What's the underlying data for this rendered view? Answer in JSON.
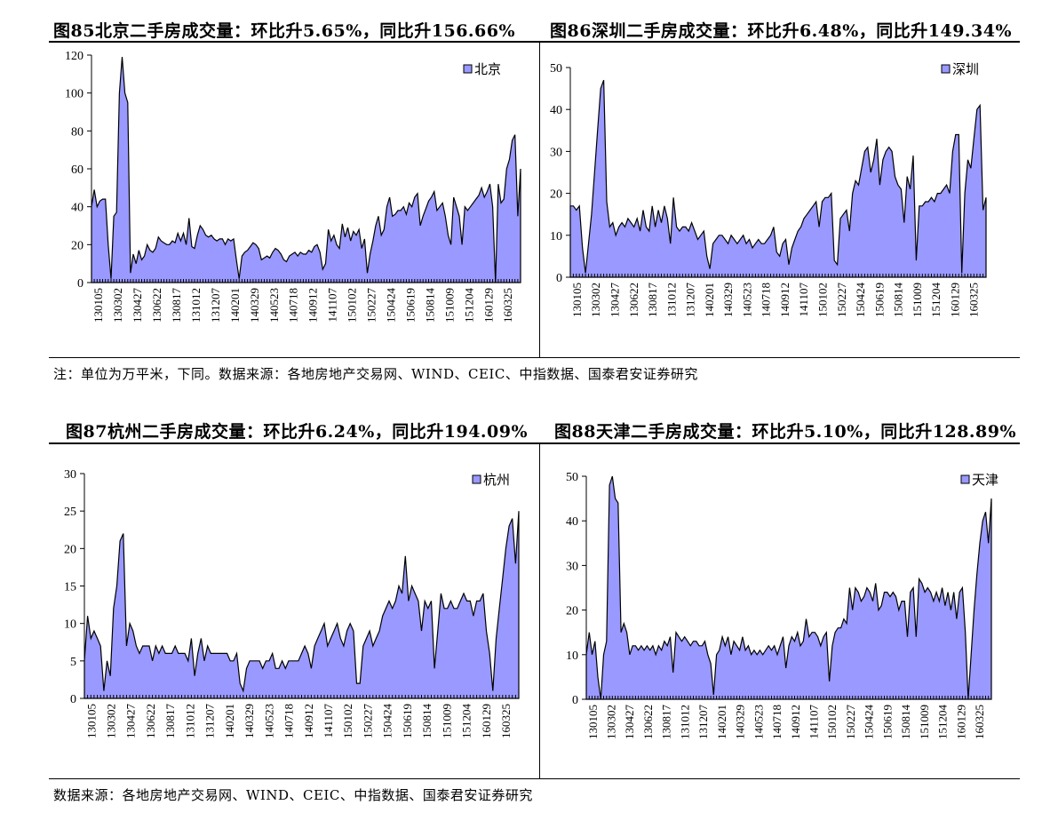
{
  "figures": [
    {
      "id": "fig85",
      "title": "图85北京二手房成交量：环比升5.65%，同比升156.66%"
    },
    {
      "id": "fig86",
      "title": "图86深圳二手房成交量：环比升6.48%，同比升149.34%"
    },
    {
      "id": "fig87",
      "title": "图87杭州二手房成交量：环比升6.24%，同比升194.09%"
    },
    {
      "id": "fig88",
      "title": "图88天津二手房成交量：环比升5.10%，同比升128.89%"
    }
  ],
  "notes": {
    "top": "注：单位为万平米，下同。数据来源：各地房地产交易网、WIND、CEIC、中指数据、国泰君安证券研究",
    "bottom": "数据来源：各地房地产交易网、WIND、CEIC、中指数据、国泰君安证券研究"
  },
  "colors": {
    "fill": "#9999ff",
    "stroke": "#000000"
  },
  "chart_data": [
    {
      "type": "area",
      "legend": "北京",
      "ylim": [
        0,
        120
      ],
      "yticks": [
        0,
        20,
        40,
        60,
        80,
        100,
        120
      ],
      "xticks": [
        "130105",
        "130302",
        "130427",
        "130622",
        "130817",
        "131012",
        "131207",
        "140201",
        "140329",
        "140523",
        "140718",
        "140912",
        "141107",
        "150102",
        "150227",
        "150424",
        "150619",
        "150814",
        "151009",
        "151204",
        "160129",
        "160325"
      ],
      "values": [
        40,
        49,
        40,
        43,
        44,
        44,
        20,
        2,
        35,
        37,
        100,
        119,
        100,
        95,
        5,
        15,
        10,
        17,
        12,
        14,
        20,
        17,
        16,
        18,
        24,
        22,
        21,
        20,
        20,
        22,
        21,
        26,
        22,
        26,
        20,
        34,
        19,
        18,
        25,
        30,
        28,
        25,
        24,
        25,
        23,
        22,
        23,
        23,
        20,
        23,
        22,
        23,
        12,
        2,
        14,
        16,
        17,
        19,
        21,
        20,
        18,
        12,
        13,
        14,
        13,
        16,
        18,
        17,
        15,
        12,
        11,
        14,
        15,
        16,
        14,
        16,
        15,
        15,
        17,
        16,
        19,
        20,
        16,
        7,
        10,
        28,
        22,
        25,
        20,
        18,
        31,
        24,
        29,
        22,
        27,
        25,
        28,
        18,
        23,
        5,
        15,
        22,
        30,
        35,
        25,
        28,
        40,
        45,
        35,
        36,
        38,
        38,
        40,
        36,
        42,
        40,
        45,
        47,
        30,
        35,
        39,
        43,
        45,
        48,
        38,
        40,
        42,
        35,
        25,
        20,
        45,
        40,
        35,
        20,
        40,
        38,
        40,
        42,
        44,
        46,
        50,
        45,
        48,
        52,
        40,
        0,
        52,
        42,
        44,
        60,
        65,
        75,
        78,
        35,
        60
      ]
    },
    {
      "type": "area",
      "legend": "深圳",
      "ylim": [
        0,
        50
      ],
      "yticks": [
        0,
        10,
        20,
        30,
        40,
        50
      ],
      "xticks": [
        "130105",
        "130302",
        "130427",
        "130622",
        "130817",
        "131012",
        "131207",
        "140201",
        "140329",
        "140523",
        "140718",
        "140912",
        "141107",
        "150102",
        "150227",
        "150424",
        "150619",
        "150814",
        "151009",
        "151204",
        "160129",
        "160325"
      ],
      "values": [
        17,
        17,
        16,
        17,
        7,
        1,
        8,
        15,
        25,
        35,
        45,
        47,
        18,
        12,
        13,
        10,
        12,
        13,
        12,
        14,
        13,
        12,
        14,
        11,
        16,
        12,
        11,
        17,
        12,
        16,
        13,
        17,
        14,
        8,
        19,
        12,
        11,
        12,
        12,
        11,
        13,
        11,
        9,
        10,
        11,
        5,
        2,
        8,
        9,
        10,
        10,
        9,
        8,
        10,
        9,
        8,
        9,
        10,
        8,
        9,
        7,
        8,
        9,
        8,
        8,
        9,
        10,
        12,
        6,
        5,
        8,
        9,
        3,
        7,
        9,
        11,
        12,
        14,
        15,
        16,
        17,
        18,
        12,
        18,
        19,
        19,
        20,
        4,
        3,
        14,
        15,
        16,
        11,
        20,
        23,
        22,
        26,
        30,
        31,
        25,
        28,
        33,
        22,
        28,
        30,
        31,
        30,
        24,
        22,
        21,
        13,
        24,
        21,
        29,
        4,
        17,
        17,
        18,
        18,
        19,
        18,
        20,
        20,
        21,
        22,
        20,
        30,
        34,
        34,
        1,
        20,
        28,
        26,
        33,
        40,
        41,
        16,
        19
      ]
    },
    {
      "type": "area",
      "legend": "杭州",
      "ylim": [
        0,
        30
      ],
      "yticks": [
        0,
        5,
        10,
        15,
        20,
        25,
        30
      ],
      "xticks": [
        "130105",
        "130302",
        "130427",
        "130622",
        "130817",
        "131012",
        "131207",
        "140201",
        "140329",
        "140523",
        "140718",
        "140912",
        "141107",
        "150102",
        "150227",
        "150424",
        "150619",
        "150814",
        "151009",
        "151204",
        "160129",
        "160325"
      ],
      "values": [
        5,
        11,
        8,
        9,
        8,
        7,
        1,
        5,
        3,
        12,
        15,
        21,
        22,
        7,
        10,
        9,
        7,
        6,
        7,
        7,
        7,
        5,
        7,
        6,
        7,
        6,
        6,
        6,
        7,
        6,
        6,
        6,
        5,
        8,
        3,
        6,
        8,
        5,
        7,
        6,
        6,
        6,
        6,
        6,
        6,
        5,
        5,
        6,
        2,
        1,
        4,
        5,
        5,
        5,
        5,
        4,
        5,
        5,
        6,
        4,
        4,
        5,
        4,
        5,
        5,
        5,
        5,
        6,
        7,
        6,
        4,
        7,
        8,
        9,
        10,
        7,
        8,
        9,
        10,
        8,
        7,
        9,
        10,
        9,
        2,
        2,
        7,
        8,
        9,
        7,
        8,
        9,
        11,
        12,
        13,
        12,
        13,
        15,
        14,
        19,
        13,
        15,
        14,
        13,
        9,
        13,
        12,
        13,
        4,
        9,
        14,
        12,
        12,
        13,
        12,
        12,
        13,
        14,
        13,
        13,
        11,
        13,
        13,
        14,
        9,
        6,
        1,
        8,
        12,
        16,
        20,
        23,
        24,
        18,
        25
      ]
    },
    {
      "type": "area",
      "legend": "天津",
      "ylim": [
        0,
        50
      ],
      "yticks": [
        0,
        10,
        20,
        30,
        40,
        50
      ],
      "xticks": [
        "130105",
        "130302",
        "130427",
        "130622",
        "130817",
        "131012",
        "131207",
        "140201",
        "140329",
        "140523",
        "140718",
        "140912",
        "141107",
        "150102",
        "150227",
        "150424",
        "150619",
        "150814",
        "151009",
        "151204",
        "160129",
        "160325"
      ],
      "values": [
        10,
        15,
        10,
        13,
        5,
        0,
        10,
        13,
        48,
        50,
        45,
        44,
        15,
        17,
        15,
        10,
        12,
        12,
        11,
        12,
        11,
        12,
        11,
        12,
        10,
        12,
        11,
        13,
        12,
        14,
        6,
        15,
        14,
        13,
        14,
        13,
        12,
        13,
        13,
        12,
        12,
        13,
        10,
        8,
        1,
        10,
        11,
        14,
        12,
        14,
        10,
        13,
        12,
        11,
        14,
        11,
        12,
        10,
        11,
        10,
        11,
        10,
        11,
        12,
        11,
        12,
        10,
        12,
        14,
        7,
        12,
        14,
        13,
        15,
        12,
        13,
        18,
        14,
        15,
        15,
        14,
        12,
        14,
        15,
        4,
        12,
        15,
        16,
        16,
        18,
        17,
        25,
        20,
        25,
        24,
        22,
        23,
        25,
        24,
        22,
        26,
        20,
        21,
        24,
        24,
        23,
        24,
        23,
        20,
        22,
        22,
        14,
        24,
        25,
        14,
        27,
        26,
        24,
        25,
        24,
        22,
        24,
        22,
        25,
        21,
        24,
        20,
        24,
        18,
        24,
        25,
        15,
        0,
        10,
        20,
        28,
        35,
        40,
        42,
        35,
        45
      ]
    }
  ]
}
